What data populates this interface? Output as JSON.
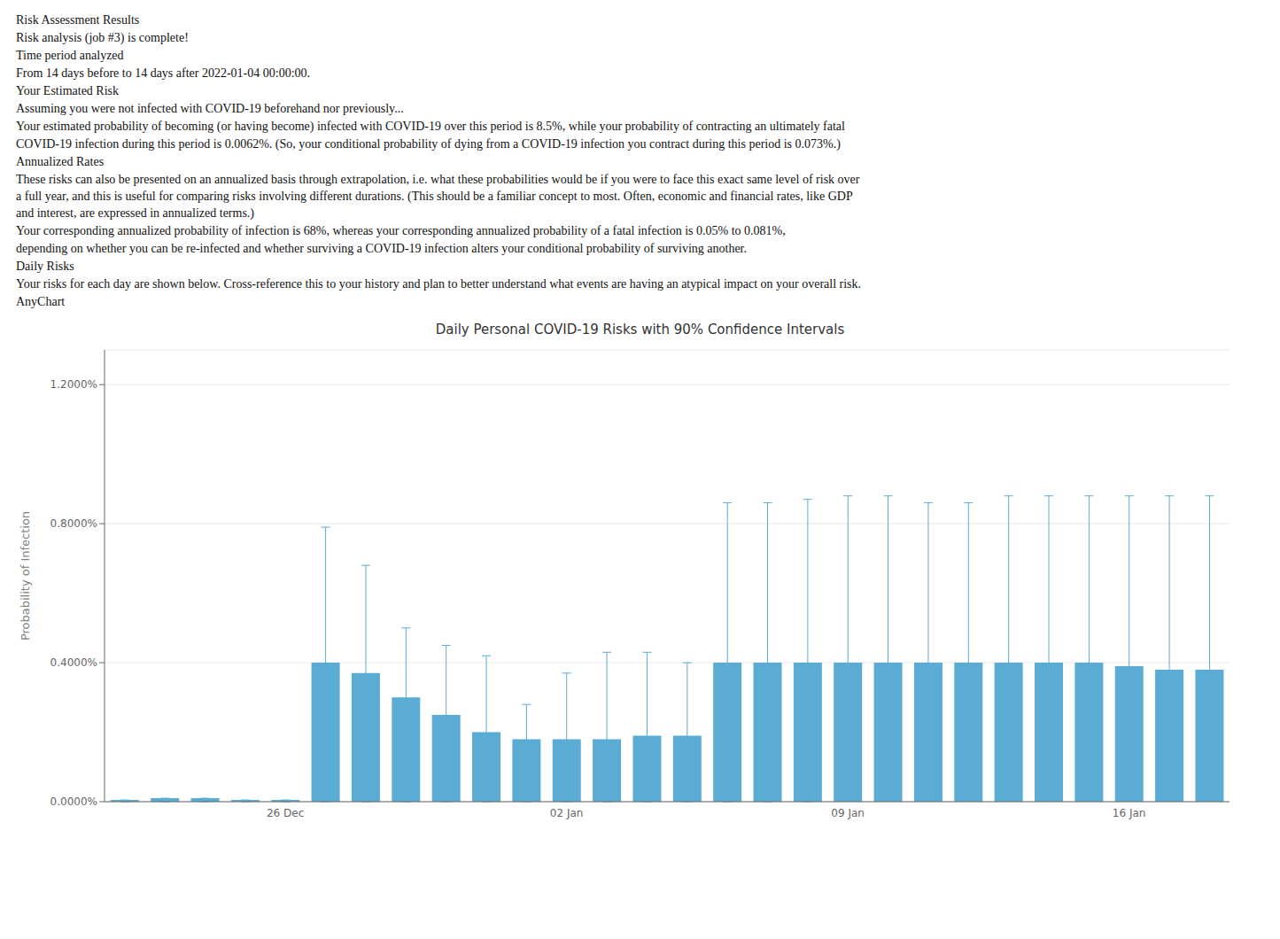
{
  "chart_data": {
    "type": "bar",
    "title": "Daily Personal COVID-19 Risks with 90% Confidence Intervals",
    "ylabel": "Probability of Infection",
    "categories": [
      null,
      null,
      null,
      null,
      "26 Dec",
      null,
      null,
      null,
      null,
      null,
      null,
      "02 Jan",
      null,
      null,
      null,
      null,
      null,
      null,
      "09 Jan",
      null,
      null,
      null,
      null,
      null,
      null,
      "16 Jan",
      null,
      null
    ],
    "values": [
      5e-05,
      0.0001,
      0.0001,
      5e-05,
      5e-05,
      0.004,
      0.0037,
      0.003,
      0.0025,
      0.002,
      0.0018,
      0.0018,
      0.0018,
      0.0019,
      0.0019,
      0.004,
      0.004,
      0.004,
      0.004,
      0.004,
      0.004,
      0.004,
      0.004,
      0.004,
      0.004,
      0.0039,
      0.0038,
      0.0038
    ],
    "error_high": [
      5e-05,
      0.0001,
      0.0001,
      5e-05,
      5e-05,
      0.0079,
      0.0068,
      0.005,
      0.0045,
      0.0042,
      0.0028,
      0.0037,
      0.0043,
      0.0043,
      0.004,
      0.0086,
      0.0086,
      0.0087,
      0.0088,
      0.0088,
      0.0086,
      0.0086,
      0.0088,
      0.0088,
      0.0088,
      0.0088,
      0.0088,
      0.0088
    ],
    "error_low": [
      0.0,
      0.0,
      0.0,
      0.0,
      0.0,
      0.0,
      0.0,
      0.0,
      0.0,
      0.0,
      0.0,
      0.0,
      0.0,
      0.0,
      0.0,
      0.0,
      0.0,
      0.0,
      0.0002,
      0.0002,
      0.0002,
      0.0002,
      0.0002,
      0.0002,
      0.0002,
      0.0002,
      0.0002,
      0.0002
    ],
    "color": "#5bacd4",
    "ylim": [
      0,
      0.013
    ],
    "yticks": [
      {
        "value": 0.0,
        "label": "0.0000%"
      },
      {
        "value": 0.004,
        "label": "0.4000%"
      },
      {
        "value": 0.008,
        "label": "0.8000%"
      },
      {
        "value": 0.012,
        "label": "1.2000%"
      }
    ],
    "grid": true,
    "annotations": [
      "Risk Assessment Results",
      "Risk analysis (job #3) is complete!",
      "Time period analyzed",
      "From 14 days before to 14 days after 2022-01-04 00:00:00.",
      "Your Estimated Risk",
      "Assuming you were not infected with COVID-19 beforehand nor previously...",
      "Your estimated probability of becoming (or having become) infected with COVID-19 over this period is 8.5%, while your probability of contracting an ultimately fatal",
      "COVID-19 infection during this period is 0.0062%. (So, your conditional probability of dying from a COVID-19 infection you contract during this period is 0.073%.)",
      "Annualized Rates",
      "These risks can also be presented on an annualized basis through extrapolation, i.e. what these probabilities would be if you were to face this exact same level of risk over\na full year, and this is useful for comparing risks involving different durations. (This should be a familiar concept to most. Often, economic and financial rates, like GDP\nand interest, are expressed in annualized terms.)",
      "Your corresponding annualized probability of infection is 68%, whereas your corresponding annualized probability of a fatal infection is 0.05% to 0.081%,",
      "depending on whether you can be re-infected and whether surviving a COVID-19 infection alters your conditional probability of surviving another.",
      "Daily Risks",
      "Your risks for each day are shown below. Cross-reference this to your history and plan to better understand what events are having an atypical impact on your overall risk.",
      "AnyChart"
    ]
  }
}
